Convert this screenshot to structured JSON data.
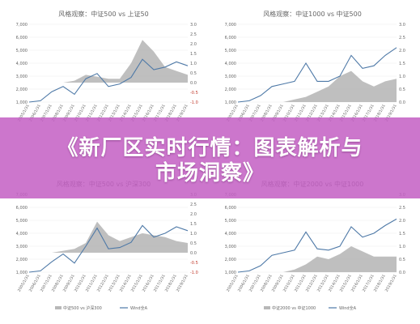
{
  "headline": {
    "line1": "《新厂区实时行情：图表解析与",
    "line2": "市场洞察》"
  },
  "colors": {
    "line": "#4e79a7",
    "area": "#b8b8b8",
    "negative_tick": "#c0392b"
  },
  "chart_data": [
    {
      "type": "line",
      "title": "风格观察：中证500 vs 上证50",
      "x": [
        "2005/1/31",
        "2006/1/31",
        "2007/1/31",
        "2008/1/31",
        "2009/1/31",
        "2010/1/31",
        "2011/1/31",
        "2012/1/31",
        "2013/1/31",
        "2014/1/31",
        "2015/1/31",
        "2016/1/31",
        "2017/1/31",
        "2018/1/31",
        "2019/1/31"
      ],
      "y_left_ticks": [
        "7,000",
        "6,000",
        "5,000",
        "4,000",
        "3,000",
        "2,000",
        "1,000"
      ],
      "y_right_ticks": [
        "3.0",
        "2.5",
        "2.0",
        "1.5",
        "1.0",
        "0.5",
        "0.0",
        "-0.5",
        "-1.0"
      ],
      "ylim_left": [
        1000,
        7000
      ],
      "ylim_right": [
        -1.0,
        3.0
      ],
      "series": [
        {
          "name": "",
          "kind": "line",
          "axis": "left",
          "values": [
            1000,
            1100,
            1800,
            2200,
            1600,
            2800,
            3200,
            2200,
            2400,
            2900,
            4300,
            3500,
            3700,
            4100,
            3800
          ]
        },
        {
          "name": "",
          "kind": "area",
          "axis": "right",
          "values": [
            0,
            0,
            0,
            0,
            0.1,
            0.4,
            0.3,
            0.2,
            0.2,
            1.0,
            2.2,
            1.6,
            0.8,
            0.6,
            0.4
          ]
        }
      ]
    },
    {
      "type": "line",
      "title": "风格观察：中证1000 vs 中证500",
      "x": [
        "2005/1/31",
        "2006/1/31",
        "2007/1/31",
        "2008/1/31",
        "2009/1/31",
        "2010/1/31",
        "2011/1/31",
        "2012/1/31",
        "2013/1/31",
        "2014/1/31",
        "2015/1/31",
        "2016/1/31",
        "2017/1/31",
        "2018/1/31",
        "2019/1/31"
      ],
      "y_left_ticks": [
        "7,000",
        "6,000",
        "5,000",
        "4,000",
        "3,000",
        "2,000",
        "1,000"
      ],
      "y_right_ticks": [
        "3.0",
        "2.5",
        "2.0",
        "1.5",
        "1.0",
        "0.5",
        "0.0"
      ],
      "ylim_left": [
        1000,
        7000
      ],
      "ylim_right": [
        0.0,
        3.0
      ],
      "series": [
        {
          "name": "",
          "kind": "line",
          "axis": "left",
          "values": [
            1000,
            1100,
            1500,
            2200,
            2400,
            2600,
            4000,
            2600,
            2600,
            3000,
            4600,
            3600,
            3800,
            4600,
            5200
          ]
        },
        {
          "name": "",
          "kind": "area",
          "axis": "right",
          "values": [
            0,
            0,
            0,
            0,
            0,
            0.1,
            0.2,
            0.4,
            0.6,
            1.0,
            1.2,
            0.8,
            0.6,
            0.8,
            0.9
          ]
        }
      ]
    },
    {
      "type": "line",
      "title": "风格观察：中证500 vs 沪深300",
      "x": [
        "2005/1/31",
        "2006/1/31",
        "2007/1/31",
        "2008/1/31",
        "2009/1/31",
        "2010/1/31",
        "2011/1/31",
        "2012/1/31",
        "2013/1/31",
        "2014/1/31",
        "2015/1/31",
        "2016/1/31",
        "2017/1/31",
        "2018/1/31",
        "2019/1/31"
      ],
      "y_left_ticks": [
        "7,000",
        "6,000",
        "5,000",
        "4,000",
        "3,000",
        "2,000",
        "1,000"
      ],
      "y_right_ticks": [
        "3.0",
        "2.5",
        "2.0",
        "1.5",
        "1.0",
        "0.5",
        "0.0",
        "-0.5",
        "-1.0"
      ],
      "ylim_left": [
        1000,
        7000
      ],
      "ylim_right": [
        -1.0,
        3.0
      ],
      "series": [
        {
          "name": "",
          "kind": "line",
          "axis": "left",
          "values": [
            1000,
            1100,
            1800,
            2400,
            1700,
            3000,
            4400,
            2800,
            2900,
            3300,
            4600,
            3700,
            4000,
            4500,
            4200
          ]
        },
        {
          "name": "",
          "kind": "area",
          "axis": "right",
          "values": [
            0,
            0,
            0,
            0.1,
            0.2,
            0.5,
            1.6,
            0.9,
            0.6,
            0.8,
            1.0,
            0.9,
            0.8,
            0.6,
            0.5
          ]
        }
      ],
      "legend": [
        "中证500 vs 沪深300",
        "Wind全A"
      ]
    },
    {
      "type": "line",
      "title": "风格观察：中证2000 vs 中证1000",
      "x": [
        "2005/1/31",
        "2006/1/31",
        "2007/1/31",
        "2008/1/31",
        "2009/1/31",
        "2010/1/31",
        "2011/1/31",
        "2012/1/31",
        "2013/1/31",
        "2014/1/31",
        "2015/1/31",
        "2016/1/31",
        "2017/1/31",
        "2018/1/31",
        "2019/1/31"
      ],
      "y_left_ticks": [
        "7,000",
        "6,000",
        "5,000",
        "4,000",
        "3,000",
        "2,000",
        "1,000"
      ],
      "y_right_ticks": [
        "3.0",
        "2.5",
        "2.0",
        "1.5",
        "1.0",
        "0.5",
        "0.0"
      ],
      "ylim_left": [
        1000,
        7000
      ],
      "ylim_right": [
        0.0,
        3.0
      ],
      "series": [
        {
          "name": "",
          "kind": "line",
          "axis": "left",
          "values": [
            1000,
            1100,
            1500,
            2300,
            2500,
            2700,
            4100,
            2800,
            2700,
            3000,
            4500,
            3700,
            4000,
            4600,
            5100
          ]
        },
        {
          "name": "",
          "kind": "area",
          "axis": "right",
          "values": [
            0,
            0,
            0,
            0,
            0,
            0.1,
            0.3,
            0.6,
            0.5,
            0.7,
            1.0,
            0.8,
            0.6,
            0.6,
            0.6
          ]
        }
      ],
      "legend": [
        "中证2000 vs 中证1000",
        "Wind全A"
      ]
    }
  ]
}
